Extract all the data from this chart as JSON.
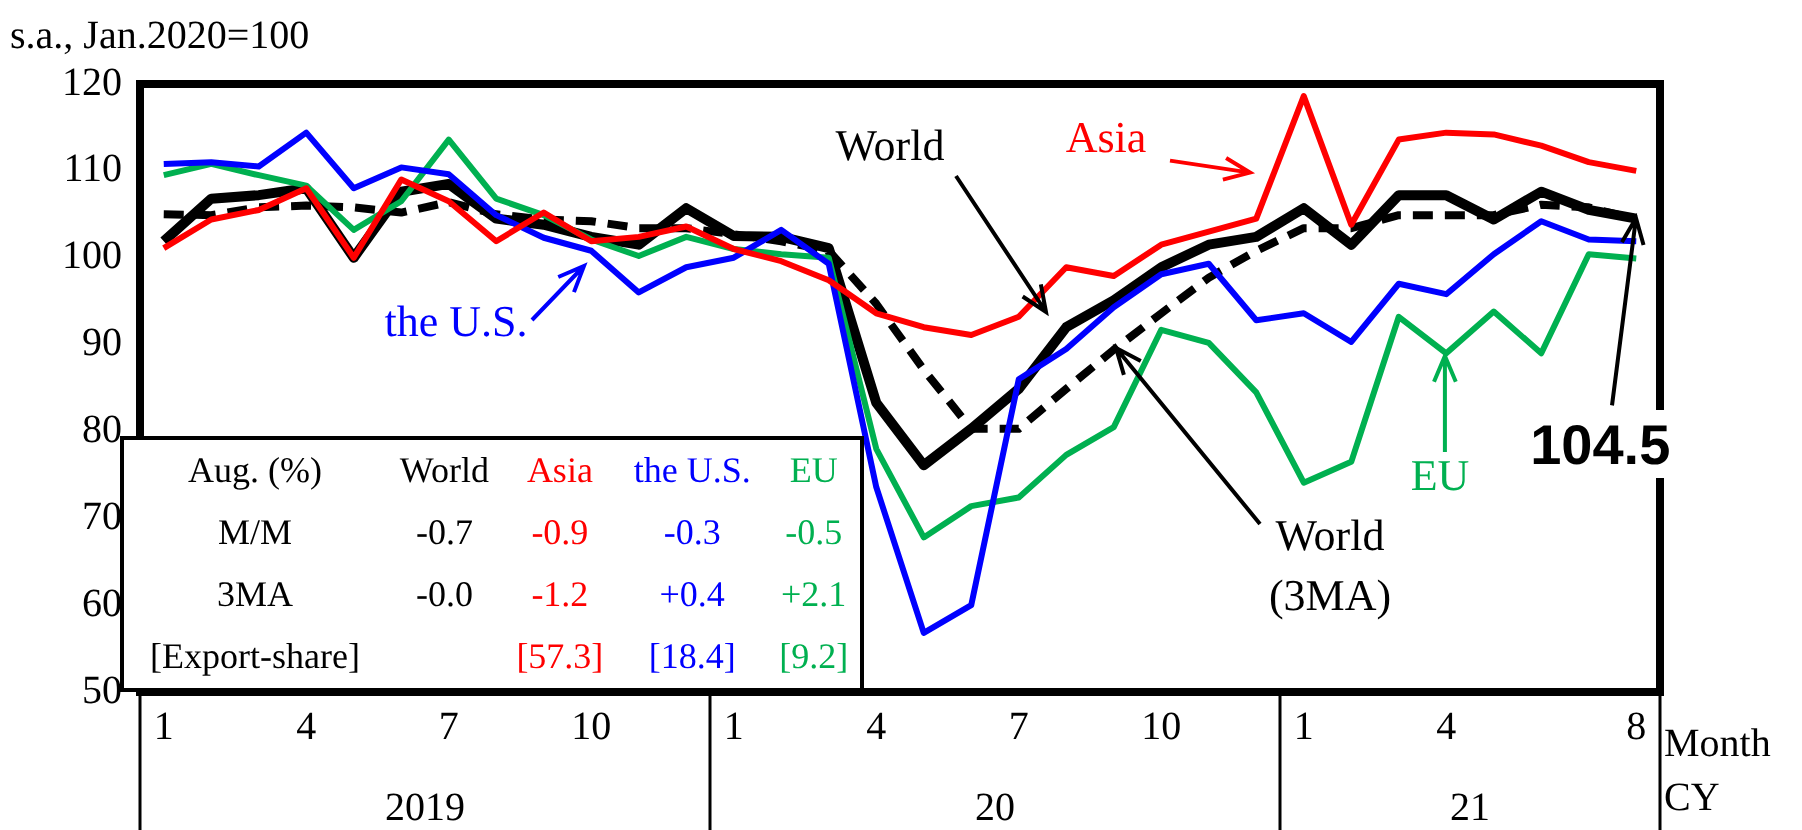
{
  "chart_data": {
    "type": "line",
    "ylabel": "s.a., Jan.2020=100",
    "xlabel": "Month",
    "categories": [
      "1",
      null,
      null,
      "4",
      null,
      null,
      "7",
      null,
      null,
      "10",
      null,
      null,
      "1",
      null,
      null,
      "4",
      null,
      null,
      "7",
      null,
      null,
      "10",
      null,
      null,
      "1",
      null,
      null,
      "4",
      null,
      null,
      null,
      "8"
    ],
    "series": [
      {
        "name": "World",
        "color": "#000000",
        "values": [
          101.9,
          106.8,
          107.2,
          108,
          100,
          107.6,
          108.5,
          104.5,
          103.8,
          102.4,
          101.5,
          105.7,
          102.5,
          102.4,
          101.1,
          83.3,
          76.1,
          80.3,
          84.9,
          92,
          95.1,
          98.9,
          101.5,
          102.4,
          105.7,
          101.5,
          107.2,
          107.2,
          104.4,
          107.6,
          105.5,
          104.5
        ]
      },
      {
        "name": "World (3MA)",
        "color": "#000000",
        "line_style": "dashed",
        "values": [
          105,
          104.9,
          105.8,
          106,
          105.8,
          105.2,
          106.4,
          105,
          104.4,
          104.2,
          103.4,
          103.4,
          102.7,
          101.9,
          100.8,
          94.7,
          87.1,
          80.3,
          80.3,
          84.9,
          89.4,
          93.6,
          97.7,
          100.8,
          103.4,
          103.4,
          104.9,
          104.9,
          104.9,
          106.1,
          105.8,
          104.4
        ]
      },
      {
        "name": "Asia",
        "color": "#ff0000",
        "values": [
          101.1,
          104.4,
          105.5,
          108,
          100,
          109,
          106.5,
          101.9,
          105.2,
          101.9,
          102.4,
          103.6,
          101,
          99.6,
          97.4,
          93.6,
          92,
          91.1,
          93.2,
          98.9,
          97.9,
          101.5,
          103,
          104.5,
          118.6,
          103.8,
          113.6,
          114.4,
          114.2,
          112.9,
          111,
          110
        ]
      },
      {
        "name": "the U.S.",
        "color": "#0000ff",
        "values": [
          110.8,
          111,
          110.5,
          114.4,
          108,
          110.4,
          109.6,
          104.9,
          102.3,
          100.8,
          96,
          98.9,
          100,
          103.2,
          99.3,
          73.6,
          56.8,
          60,
          86,
          89.5,
          94.3,
          98.1,
          99.3,
          92.8,
          93.6,
          90.3,
          97,
          95.8,
          100.4,
          104.2,
          102.1,
          101.9
        ]
      },
      {
        "name": "EU",
        "color": "#00b050",
        "values": [
          109.5,
          110.8,
          109.5,
          108.3,
          103.2,
          106.5,
          113.6,
          106.8,
          104.9,
          102.1,
          100.2,
          102.4,
          101,
          100.4,
          100,
          78,
          67.8,
          71.4,
          72.4,
          77.3,
          80.5,
          91.7,
          90.2,
          84.5,
          74.1,
          76.5,
          93.2,
          89,
          93.8,
          89,
          100.4,
          99.9
        ]
      }
    ],
    "ylim": [
      50,
      120
    ],
    "yticks": [
      50,
      60,
      70,
      80,
      90,
      100,
      110,
      120
    ],
    "grid": false,
    "legend": "top",
    "marker": "none",
    "line_style": "solid",
    "annotations": [
      "Aug. (%)",
      "World",
      "Asia",
      "the U.S.",
      "EU",
      "M/M",
      "-0.7",
      "-0.9",
      "-0.3",
      "-0.5",
      "3MA",
      "-0.0",
      "-1.2",
      "+0.4",
      "+2.1",
      "[Export-share]",
      "[57.3]",
      "[18.4]",
      "[9.2]",
      "2019",
      "20",
      "21",
      "CY",
      {
        "text": "104.5",
        "x": "8",
        "y": 104.5
      }
    ]
  }
}
